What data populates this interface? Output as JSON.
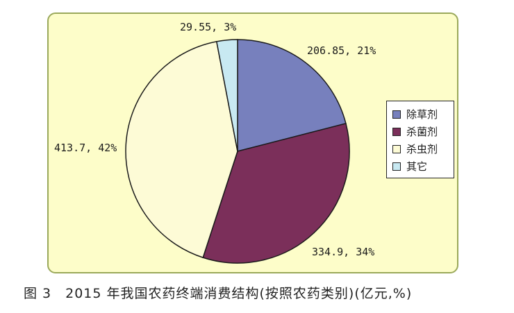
{
  "chart_data": {
    "type": "pie",
    "title": "",
    "slices": [
      {
        "name": "除草剂",
        "value": 206.85,
        "percent": 21,
        "label": "206.85, 21%",
        "color": "#7780bd"
      },
      {
        "name": "杀菌剂",
        "value": 334.9,
        "percent": 34,
        "label": "334.9, 34%",
        "color": "#7b2f5a"
      },
      {
        "name": "杀虫剂",
        "value": 413.7,
        "percent": 42,
        "label": "413.7, 42%",
        "color": "#fdfbd6"
      },
      {
        "name": "其它",
        "value": 29.55,
        "percent": 3,
        "label": "29.55, 3%",
        "color": "#c8e9f2"
      }
    ],
    "legend_position": "right"
  },
  "caption": "图 3　2015 年我国农药终端消费结构(按照农药类别)(亿元,%)",
  "colors": {
    "panel_background": "#fdfdc9",
    "panel_border": "#9aa85a",
    "slice_outline": "#1a1a1a"
  }
}
